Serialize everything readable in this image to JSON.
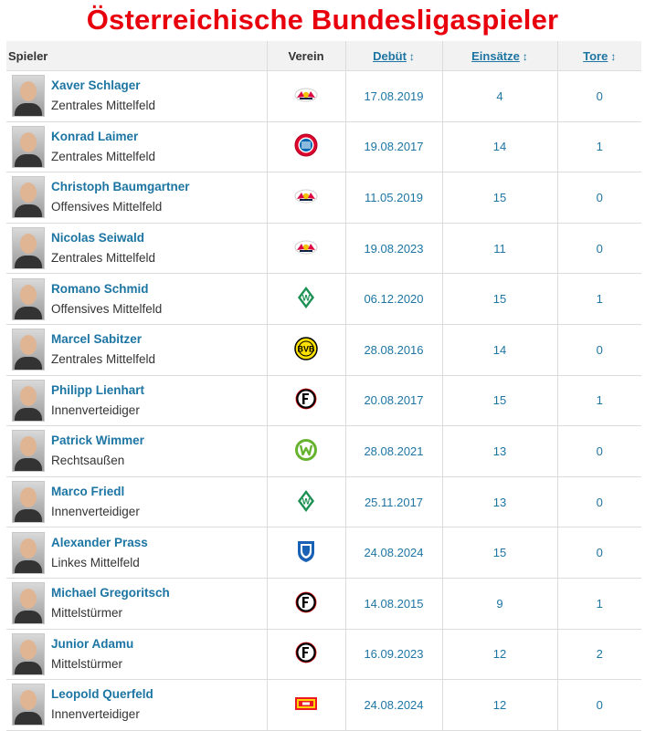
{
  "title": "Österreichische Bundesligaspieler",
  "headers": {
    "player": "Spieler",
    "club": "Verein",
    "debut": "Debüt",
    "apps": "Einsätze",
    "goals": "Tore",
    "sort_glyph": "↕"
  },
  "players": [
    {
      "name": "Xaver Schlager",
      "position": "Zentrales Mittelfeld",
      "club_icon": "rb-leipzig-crest-icon",
      "debut": "17.08.2019",
      "apps": "4",
      "goals": "0"
    },
    {
      "name": "Konrad Laimer",
      "position": "Zentrales Mittelfeld",
      "club_icon": "bayern-munich-crest-icon",
      "debut": "19.08.2017",
      "apps": "14",
      "goals": "1"
    },
    {
      "name": "Christoph Baumgartner",
      "position": "Offensives Mittelfeld",
      "club_icon": "rb-leipzig-crest-icon",
      "debut": "11.05.2019",
      "apps": "15",
      "goals": "0"
    },
    {
      "name": "Nicolas Seiwald",
      "position": "Zentrales Mittelfeld",
      "club_icon": "rb-leipzig-crest-icon",
      "debut": "19.08.2023",
      "apps": "11",
      "goals": "0"
    },
    {
      "name": "Romano Schmid",
      "position": "Offensives Mittelfeld",
      "club_icon": "werder-bremen-crest-icon",
      "debut": "06.12.2020",
      "apps": "15",
      "goals": "1"
    },
    {
      "name": "Marcel Sabitzer",
      "position": "Zentrales Mittelfeld",
      "club_icon": "borussia-dortmund-crest-icon",
      "debut": "28.08.2016",
      "apps": "14",
      "goals": "0"
    },
    {
      "name": "Philipp Lienhart",
      "position": "Innenverteidiger",
      "club_icon": "sc-freiburg-crest-icon",
      "debut": "20.08.2017",
      "apps": "15",
      "goals": "1"
    },
    {
      "name": "Patrick Wimmer",
      "position": "Rechtsaußen",
      "club_icon": "vfl-wolfsburg-crest-icon",
      "debut": "28.08.2021",
      "apps": "13",
      "goals": "0"
    },
    {
      "name": "Marco Friedl",
      "position": "Innenverteidiger",
      "club_icon": "werder-bremen-crest-icon",
      "debut": "25.11.2017",
      "apps": "13",
      "goals": "0"
    },
    {
      "name": "Alexander Prass",
      "position": "Linkes Mittelfeld",
      "club_icon": "tsg-hoffenheim-crest-icon",
      "debut": "24.08.2024",
      "apps": "15",
      "goals": "0"
    },
    {
      "name": "Michael Gregoritsch",
      "position": "Mittelstürmer",
      "club_icon": "sc-freiburg-crest-icon",
      "debut": "14.08.2015",
      "apps": "9",
      "goals": "1"
    },
    {
      "name": "Junior Adamu",
      "position": "Mittelstürmer",
      "club_icon": "sc-freiburg-crest-icon",
      "debut": "16.09.2023",
      "apps": "12",
      "goals": "2"
    },
    {
      "name": "Leopold Querfeld",
      "position": "Innenverteidiger",
      "club_icon": "union-berlin-crest-icon",
      "debut": "24.08.2024",
      "apps": "12",
      "goals": "0"
    }
  ],
  "colors": {
    "title": "#e8000d",
    "link": "#1d75a3",
    "header_bg": "#f2f2f2"
  }
}
